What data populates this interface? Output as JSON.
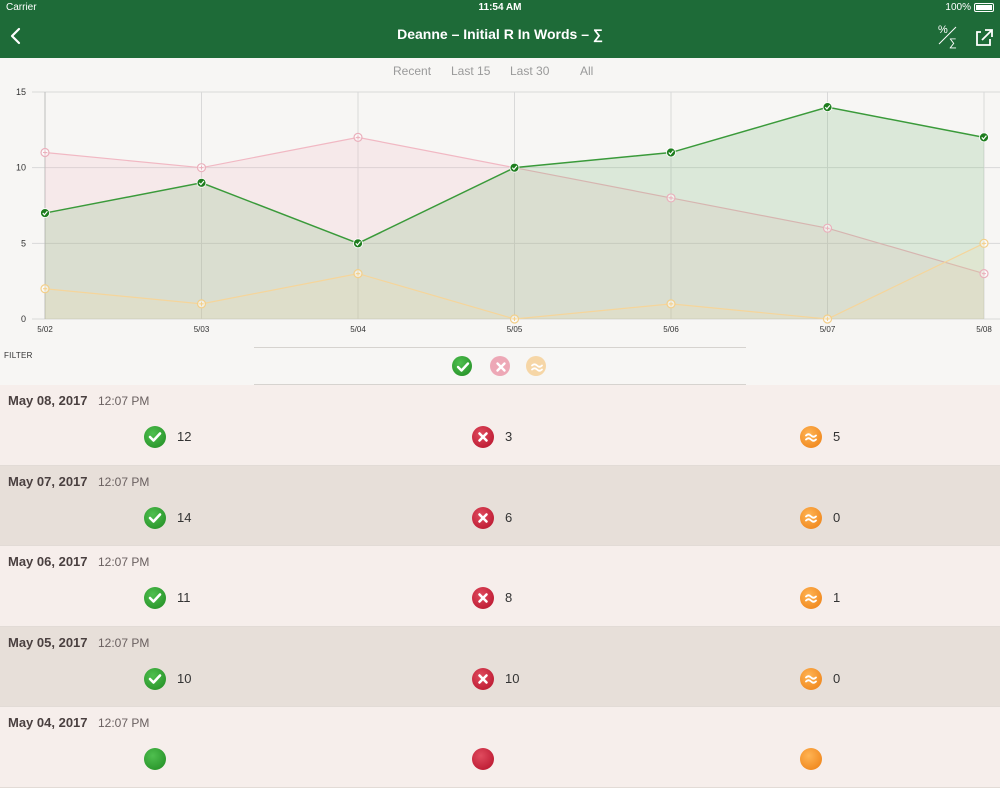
{
  "status": {
    "carrier": "Carrier",
    "time": "11:54 AM",
    "battery": "100%"
  },
  "nav": {
    "title": "Deanne – Initial R In Words – ∑",
    "back_icon": "chevron-left-icon",
    "percent_icon": "percent-sum-icon",
    "share_icon": "share-icon"
  },
  "range_tabs": [
    {
      "label": "Recent",
      "active": true
    },
    {
      "label": "Last 15",
      "active": false
    },
    {
      "label": "Last 30",
      "active": false
    },
    {
      "label": "All",
      "active": false
    }
  ],
  "filter": {
    "label": "FILTER"
  },
  "colors": {
    "correct": "#2f8a2f",
    "incorrect": "#e59aa8",
    "approx": "#f3cf8a",
    "nav": "#1e6b38"
  },
  "chart_data": {
    "type": "area",
    "categories": [
      "5/02",
      "5/03",
      "5/04",
      "5/05",
      "5/06",
      "5/07",
      "5/08"
    ],
    "series": [
      {
        "values": [
          11,
          10,
          12,
          10,
          8,
          6,
          3
        ]
      },
      {
        "values": [
          7,
          9,
          5,
          10,
          11,
          14,
          12
        ]
      },
      {
        "values": [
          2,
          1,
          3,
          0,
          1,
          0,
          5
        ]
      }
    ],
    "ylim": [
      0,
      15
    ],
    "yticks": [
      0,
      5,
      10,
      15
    ],
    "grid": true
  },
  "rows": [
    {
      "date": "May 08, 2017",
      "time": "12:07 PM",
      "correct": "12",
      "incorrect": "3",
      "approx": "5"
    },
    {
      "date": "May 07, 2017",
      "time": "12:07 PM",
      "correct": "14",
      "incorrect": "6",
      "approx": "0"
    },
    {
      "date": "May 06, 2017",
      "time": "12:07 PM",
      "correct": "11",
      "incorrect": "8",
      "approx": "1"
    },
    {
      "date": "May 05, 2017",
      "time": "12:07 PM",
      "correct": "10",
      "incorrect": "10",
      "approx": "0"
    },
    {
      "date": "May 04, 2017",
      "time": "12:07 PM",
      "correct": "",
      "incorrect": "",
      "approx": ""
    }
  ]
}
